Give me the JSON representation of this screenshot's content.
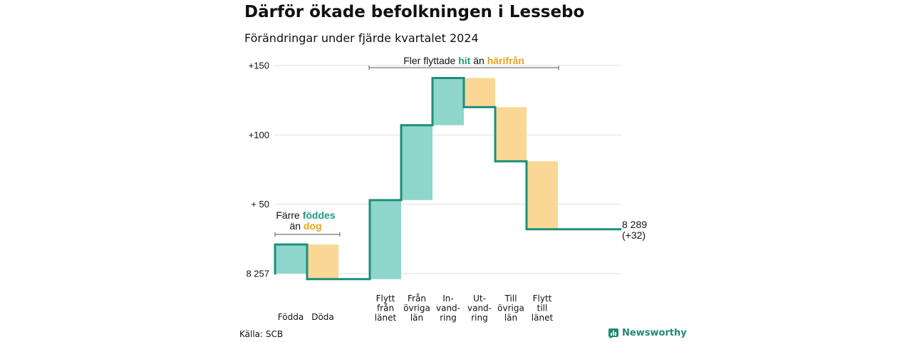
{
  "header": {
    "title": "Därför ökade befolkningen i Lessebo",
    "subtitle": "Förändringar under fjärde kvartalet 2024"
  },
  "footer": {
    "source": "Källa: SCB",
    "brand": "Newsworthy",
    "brand_icon": "bar-chart-icon"
  },
  "colors": {
    "increase_fill": "#8fd6cd",
    "decrease_fill": "#fad795",
    "step_line": "#1d8f7b",
    "highlight_in": "#1f9a86",
    "highlight_out": "#e8a21a",
    "grid": "#dddddd"
  },
  "annotations": {
    "births": {
      "line1": "Färre",
      "word_in": "föddes",
      "line2_pre": "än",
      "word_out": "dog"
    },
    "moves": {
      "pre": "Fler flyttade",
      "word_in": "hit",
      "mid": "än",
      "word_out": "härifrån"
    }
  },
  "chart_data": {
    "type": "waterfall",
    "title": "Därför ökade befolkningen i Lessebo",
    "subtitle": "Förändringar under fjärde kvartalet 2024",
    "baseline_label": "8 257",
    "y_ticks": [
      "+150",
      "+100",
      "+ 50",
      "8 257"
    ],
    "y_tick_values": [
      150,
      100,
      50,
      0
    ],
    "ylim": [
      0,
      150
    ],
    "grid": true,
    "categories": [
      {
        "lines": [
          "Födda"
        ],
        "change": 21,
        "kind": "in"
      },
      {
        "lines": [
          "Döda"
        ],
        "change": -25,
        "kind": "out"
      },
      {
        "lines": [
          "Flytt",
          "från",
          "länet"
        ],
        "change": 57,
        "kind": "in"
      },
      {
        "lines": [
          "Från",
          "övriga",
          "län"
        ],
        "change": 54,
        "kind": "in"
      },
      {
        "lines": [
          "In-",
          "vand-",
          "ring"
        ],
        "change": 34,
        "kind": "in"
      },
      {
        "lines": [
          "Ut-",
          "vand-",
          "ring"
        ],
        "change": -21,
        "kind": "out"
      },
      {
        "lines": [
          "Till",
          "övriga",
          "län"
        ],
        "change": -39,
        "kind": "out"
      },
      {
        "lines": [
          "Flytt",
          "till",
          "länet"
        ],
        "change": -49,
        "kind": "out"
      }
    ],
    "end_value": "8 289",
    "end_change": "(+32)"
  }
}
